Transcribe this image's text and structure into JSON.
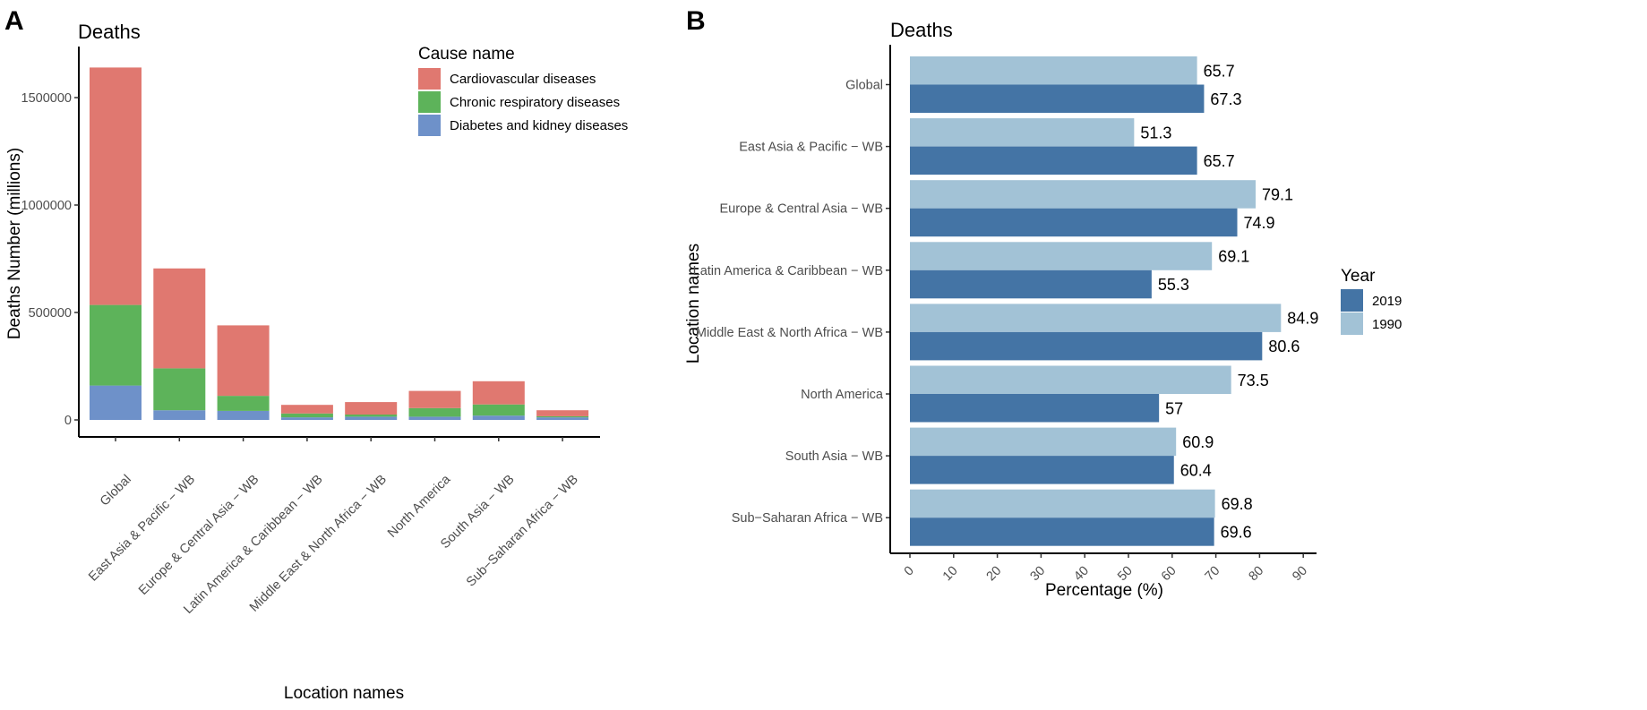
{
  "colors": {
    "cardiovascular": "#E07870",
    "respiratory": "#5DB35A",
    "diabetes": "#6E91C9",
    "y2019": "#4474A5",
    "y1990": "#A2C2D6"
  },
  "chart_data": [
    {
      "panel": "A",
      "type": "bar",
      "stacked": true,
      "title": "Deaths",
      "xlabel": "Location names",
      "ylabel": "Deaths Number (millions)",
      "ylim": [
        0,
        1700000
      ],
      "yticks": [
        0,
        500000,
        1000000,
        1500000
      ],
      "ytick_labels": [
        "0",
        "500000",
        "1000000",
        "1500000"
      ],
      "legend_title": "Cause name",
      "categories": [
        "Global",
        "East Asia & Pacific − WB",
        "Europe & Central Asia − WB",
        "Latin America & Caribbean − WB",
        "Middle East & North Africa − WB",
        "North America",
        "South Asia − WB",
        "Sub−Saharan Africa − WB"
      ],
      "series": [
        {
          "name": "Diabetes and kidney diseases",
          "color_key": "diabetes",
          "values": [
            160000,
            45000,
            42000,
            12000,
            15000,
            15000,
            20000,
            12000
          ]
        },
        {
          "name": "Chronic respiratory diseases",
          "color_key": "respiratory",
          "values": [
            375000,
            195000,
            70000,
            18000,
            10000,
            40000,
            52000,
            5000
          ]
        },
        {
          "name": "Cardiovascular diseases",
          "color_key": "cardiovascular",
          "values": [
            1105000,
            465000,
            328000,
            40000,
            58000,
            80000,
            108000,
            28000
          ]
        }
      ],
      "legend_order": [
        "Cardiovascular diseases",
        "Chronic respiratory diseases",
        "Diabetes and kidney diseases"
      ]
    },
    {
      "panel": "B",
      "type": "bar",
      "orientation": "horizontal",
      "title": "Deaths",
      "xlabel": "Percentage (%)",
      "ylabel": "Location names",
      "xlim": [
        0,
        90
      ],
      "xticks": [
        0,
        10,
        20,
        30,
        40,
        50,
        60,
        70,
        80,
        90
      ],
      "legend_title": "Year",
      "categories": [
        "Global",
        "East Asia & Pacific − WB",
        "Europe & Central Asia − WB",
        "Latin America & Caribbean − WB",
        "Middle East & North Africa − WB",
        "North America",
        "South Asia − WB",
        "Sub−Saharan Africa − WB"
      ],
      "series": [
        {
          "name": "1990",
          "color_key": "y1990",
          "values": [
            65.7,
            51.3,
            79.1,
            69.1,
            84.9,
            73.5,
            60.9,
            69.8
          ],
          "labels": [
            "65.7",
            "51.3",
            "79.1",
            "69.1",
            "84.9",
            "73.5",
            "60.9",
            "69.8"
          ]
        },
        {
          "name": "2019",
          "color_key": "y2019",
          "values": [
            67.3,
            65.7,
            74.9,
            55.3,
            80.6,
            57,
            60.4,
            69.6
          ],
          "labels": [
            "67.3",
            "65.7",
            "74.9",
            "55.3",
            "80.6",
            "57",
            "60.4",
            "69.6"
          ]
        }
      ],
      "legend_order": [
        "2019",
        "1990"
      ]
    }
  ]
}
